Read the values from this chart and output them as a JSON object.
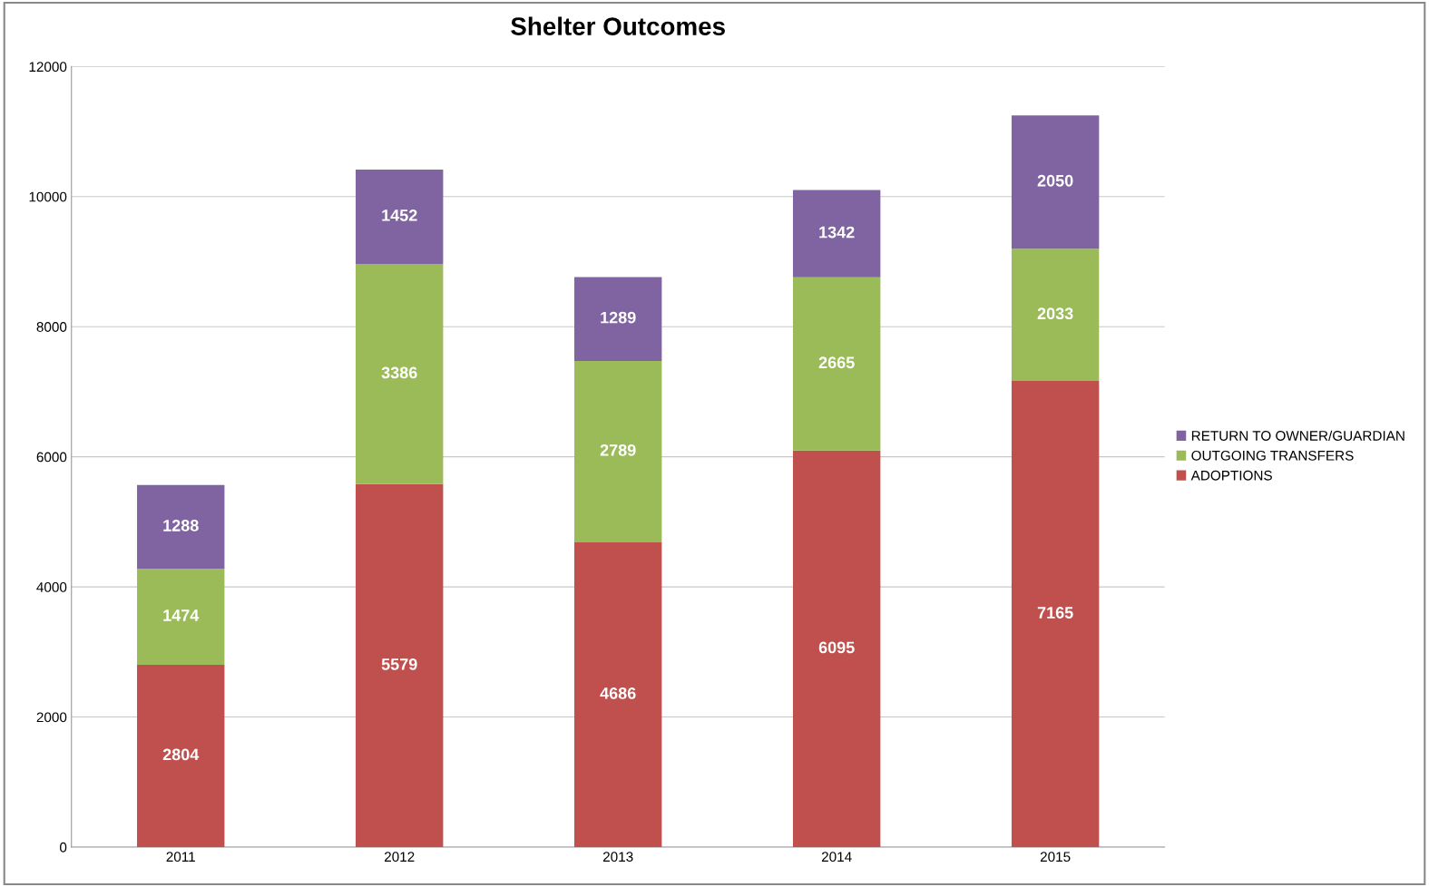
{
  "chart_data": {
    "type": "bar",
    "title": "Shelter Outcomes",
    "stacked": true,
    "categories": [
      "2011",
      "2012",
      "2013",
      "2014",
      "2015"
    ],
    "series": [
      {
        "name": "ADOPTIONS",
        "color": "#c0504d",
        "values": [
          2804,
          5579,
          4686,
          6095,
          7165
        ]
      },
      {
        "name": "OUTGOING TRANSFERS",
        "color": "#9bbb59",
        "values": [
          1474,
          3386,
          2789,
          2665,
          2033
        ]
      },
      {
        "name": "RETURN TO OWNER/GUARDIAN",
        "color": "#8064a2",
        "values": [
          1288,
          1452,
          1289,
          1342,
          2050
        ]
      }
    ],
    "ylim": [
      0,
      12000
    ],
    "yticks": [
      0,
      2000,
      4000,
      6000,
      8000,
      10000,
      12000
    ],
    "grid": "y",
    "legend": "right",
    "data_labels": true
  }
}
